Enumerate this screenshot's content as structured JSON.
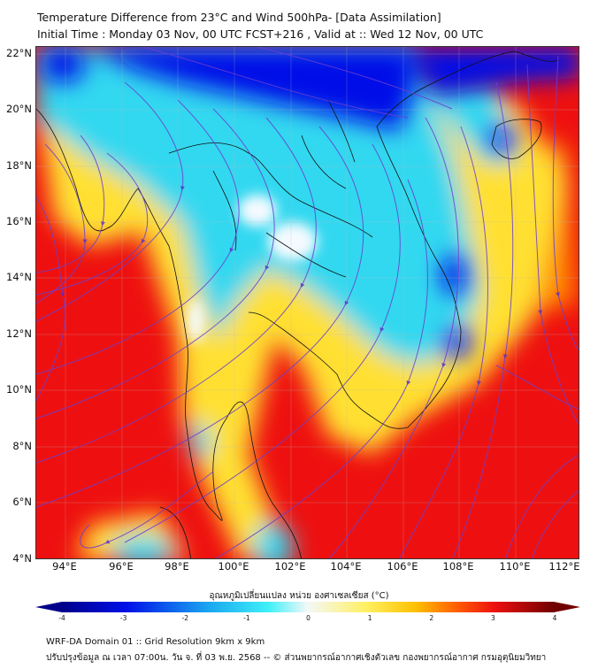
{
  "header": {
    "title": "Temperature Difference from 23°C and Wind 500hPa- [Data Assimilation]",
    "subtitle": "Initial Time : Monday 03 Nov, 00 UTC FCST+216 , Valid at ::  Wed 12 Nov, 00 UTC"
  },
  "map": {
    "lat_labels": [
      "22°N",
      "20°N",
      "18°N",
      "16°N",
      "14°N",
      "12°N",
      "10°N",
      "8°N",
      "6°N",
      "4°N"
    ],
    "lon_labels": [
      "94°E",
      "96°E",
      "98°E",
      "100°E",
      "102°E",
      "104°E",
      "106°E",
      "108°E",
      "110°E",
      "112°E"
    ],
    "colors": {
      "hot": "#ee1010",
      "warm": "#ff8a00",
      "mild": "#ffe030",
      "neutral": "#f4faff",
      "cool": "#30d8f0",
      "cold": "#0010e8",
      "streamline": "#6a3fd0"
    }
  },
  "colorbar": {
    "title": "อุณหภูมิเปลี่ยนแปลง หน่วย องศาเซลเซียส (°C)",
    "ticks": [
      "-4",
      "-3",
      "-2",
      "-1",
      "0",
      "1",
      "2",
      "3",
      "4"
    ],
    "range": [
      -4,
      4
    ]
  },
  "footer": {
    "line1": "WRF-DA Domain 01 :: Grid Resolution 9km x 9km",
    "line2": "ปรับปรุงข้อมูล ณ เวลา 07:00น. วัน จ. ที่ 03 พ.ย. 2568 -- © ส่วนพยากรณ์อากาศเชิงตัวเลข กองพยากรณ์อากาศ กรมอุตุนิยมวิทยา"
  }
}
